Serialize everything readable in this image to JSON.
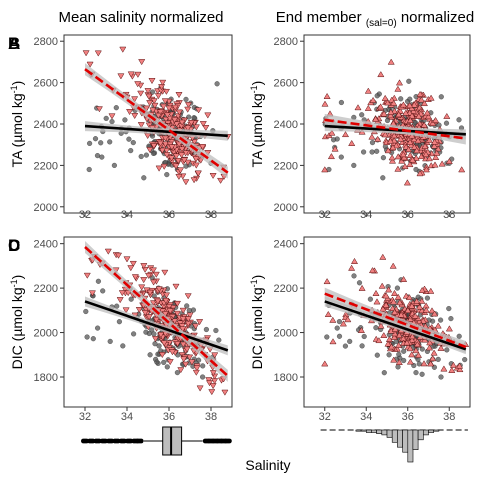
{
  "figure": {
    "column_titles": [
      {
        "main": "Mean salinity normalized",
        "sub": "",
        "tail": ""
      },
      {
        "main": "End member ",
        "sub": "(sal=0)",
        "tail": " normalized"
      }
    ],
    "xlabel": "Salinity",
    "colors": {
      "observed": "#555555",
      "normalized_fill": "#f08080",
      "normalized_dense": "#c00000",
      "fit_observed": "#000000",
      "fit_normalized": "#e00000",
      "ci_band": "#bdbdbd"
    }
  },
  "chart_data": [
    {
      "panel": "A",
      "type": "scatter",
      "ylabel": "TA (µmol kg⁻¹)",
      "xlim": [
        31,
        39
      ],
      "ylim": [
        1970,
        2830
      ],
      "xticks": [
        32,
        34,
        36,
        38
      ],
      "yticks": [
        2000,
        2200,
        2400,
        2600,
        2800
      ],
      "marker": "triangle-down",
      "observed_fit": {
        "x": [
          32,
          38.8
        ],
        "y": [
          2390,
          2343
        ]
      },
      "normalized_fit": {
        "x": [
          32,
          38.8
        ],
        "y": [
          2665,
          2165
        ]
      },
      "observed_sample": [
        [
          32.2,
          2180
        ],
        [
          32.8,
          2240
        ],
        [
          33.4,
          2200
        ],
        [
          33.9,
          2420
        ],
        [
          34.3,
          2310
        ],
        [
          34.8,
          2140
        ],
        [
          35.2,
          2460
        ],
        [
          35.6,
          2280
        ],
        [
          36.1,
          2520
        ],
        [
          36.4,
          2180
        ],
        [
          36.8,
          2390
        ],
        [
          37.1,
          2260
        ],
        [
          37.5,
          2340
        ],
        [
          38.0,
          2210
        ]
      ],
      "normalized_sample": [
        [
          33.8,
          2760
        ],
        [
          34.2,
          2640
        ],
        [
          34.7,
          2700
        ],
        [
          35.0,
          2560
        ],
        [
          35.3,
          2420
        ],
        [
          35.7,
          2600
        ],
        [
          36.0,
          2350
        ],
        [
          36.3,
          2480
        ],
        [
          36.6,
          2250
        ],
        [
          36.9,
          2380
        ],
        [
          37.3,
          2200
        ],
        [
          37.6,
          2290
        ],
        [
          38.1,
          2150
        ],
        [
          38.6,
          2190
        ]
      ]
    },
    {
      "panel": "B",
      "type": "scatter",
      "ylabel": "TA (µmol kg⁻¹)",
      "xlim": [
        31,
        39
      ],
      "ylim": [
        1970,
        2830
      ],
      "xticks": [
        32,
        34,
        36,
        38
      ],
      "yticks": [
        2000,
        2200,
        2400,
        2600,
        2800
      ],
      "marker": "triangle-up",
      "observed_fit": {
        "x": [
          32,
          38.8
        ],
        "y": [
          2390,
          2350
        ]
      },
      "normalized_fit": {
        "x": [
          32,
          38.8
        ],
        "y": [
          2420,
          2330
        ]
      },
      "observed_sample": [
        [
          32.2,
          2180
        ],
        [
          32.8,
          2240
        ],
        [
          33.4,
          2200
        ],
        [
          33.9,
          2420
        ],
        [
          34.3,
          2310
        ],
        [
          34.8,
          2140
        ],
        [
          35.2,
          2460
        ],
        [
          35.6,
          2280
        ],
        [
          36.1,
          2520
        ],
        [
          36.4,
          2180
        ],
        [
          36.8,
          2390
        ],
        [
          37.1,
          2260
        ],
        [
          37.5,
          2340
        ],
        [
          38.0,
          2210
        ]
      ],
      "normalized_sample": [
        [
          32.0,
          2180
        ],
        [
          32.5,
          2280
        ],
        [
          33.0,
          2350
        ],
        [
          33.6,
          2480
        ],
        [
          34.1,
          2560
        ],
        [
          34.7,
          2640
        ],
        [
          35.2,
          2700
        ],
        [
          35.6,
          2600
        ],
        [
          36.1,
          2490
        ],
        [
          36.5,
          2320
        ],
        [
          36.9,
          2180
        ],
        [
          37.4,
          2260
        ],
        [
          38.0,
          2220
        ],
        [
          38.6,
          2180
        ]
      ]
    },
    {
      "panel": "C",
      "type": "scatter",
      "ylabel": "DIC (µmol kg⁻¹)",
      "xlim": [
        31,
        39
      ],
      "ylim": [
        1665,
        2430
      ],
      "xticks": [
        32,
        34,
        36,
        38
      ],
      "yticks": [
        1800,
        2000,
        2200,
        2400
      ],
      "marker": "triangle-down",
      "observed_fit": {
        "x": [
          32,
          38.8
        ],
        "y": [
          2140,
          1920
        ]
      },
      "normalized_fit": {
        "x": [
          32,
          38.8
        ],
        "y": [
          2385,
          1805
        ]
      },
      "observed_sample": [
        [
          32.1,
          1980
        ],
        [
          32.6,
          2020
        ],
        [
          33.2,
          1960
        ],
        [
          33.8,
          1940
        ],
        [
          34.2,
          2150
        ],
        [
          34.7,
          2050
        ],
        [
          35.1,
          1900
        ],
        [
          35.5,
          2200
        ],
        [
          36.0,
          1950
        ],
        [
          36.4,
          1820
        ],
        [
          36.8,
          2000
        ],
        [
          37.2,
          1880
        ],
        [
          37.6,
          1800
        ],
        [
          38.1,
          1860
        ]
      ],
      "normalized_sample": [
        [
          34.0,
          2330
        ],
        [
          34.4,
          2250
        ],
        [
          34.8,
          2300
        ],
        [
          35.1,
          2180
        ],
        [
          35.5,
          2100
        ],
        [
          35.8,
          2270
        ],
        [
          36.1,
          2000
        ],
        [
          36.4,
          2130
        ],
        [
          36.7,
          1880
        ],
        [
          37.0,
          1960
        ],
        [
          37.3,
          1820
        ],
        [
          37.7,
          1900
        ],
        [
          38.1,
          1760
        ],
        [
          38.6,
          1790
        ]
      ]
    },
    {
      "panel": "D",
      "type": "scatter",
      "ylabel": "DIC (µmol kg⁻¹)",
      "xlim": [
        31,
        39
      ],
      "ylim": [
        1665,
        2430
      ],
      "xticks": [
        32,
        34,
        36,
        38
      ],
      "yticks": [
        1800,
        2000,
        2200,
        2400
      ],
      "marker": "triangle-up",
      "observed_fit": {
        "x": [
          32,
          38.8
        ],
        "y": [
          2140,
          1925
        ]
      },
      "normalized_fit": {
        "x": [
          32,
          38.8
        ],
        "y": [
          2175,
          1935
        ]
      },
      "observed_sample": [
        [
          32.1,
          1980
        ],
        [
          32.6,
          2020
        ],
        [
          33.2,
          1960
        ],
        [
          33.8,
          1940
        ],
        [
          34.2,
          2150
        ],
        [
          34.7,
          2050
        ],
        [
          35.1,
          1900
        ],
        [
          35.5,
          2200
        ],
        [
          36.0,
          1950
        ],
        [
          36.4,
          1820
        ],
        [
          36.8,
          2000
        ],
        [
          37.2,
          1880
        ],
        [
          37.6,
          1800
        ],
        [
          38.1,
          1860
        ]
      ],
      "normalized_sample": [
        [
          32.0,
          1860
        ],
        [
          32.4,
          1960
        ],
        [
          32.9,
          2040
        ],
        [
          33.4,
          2120
        ],
        [
          33.8,
          2200
        ],
        [
          34.3,
          2280
        ],
        [
          34.8,
          2340
        ],
        [
          35.3,
          2300
        ],
        [
          35.8,
          2240
        ],
        [
          36.2,
          2120
        ],
        [
          36.6,
          1980
        ],
        [
          37.1,
          1860
        ],
        [
          37.6,
          1930
        ],
        [
          38.5,
          1850
        ]
      ]
    }
  ],
  "marginal": {
    "boxplot": {
      "type": "box",
      "xlim": [
        31,
        39
      ],
      "q1": 35.7,
      "median": 36.1,
      "q3": 36.6,
      "whisker_low": 34.8,
      "whisker_high": 37.6,
      "outliers": [
        32.0,
        32.3,
        32.6,
        32.9,
        33.2,
        33.5,
        33.8,
        34.1,
        34.4,
        34.6,
        37.8,
        38.0,
        38.2,
        38.4,
        38.6,
        38.8
      ]
    },
    "histogram": {
      "type": "bar",
      "xlim": [
        31,
        39
      ],
      "bin_width": 0.25,
      "bin_centers": [
        33.625,
        33.875,
        34.125,
        34.375,
        34.625,
        34.875,
        35.125,
        35.375,
        35.625,
        35.875,
        36.125,
        36.375,
        36.625,
        36.875,
        37.125,
        37.375
      ],
      "counts": [
        1,
        1,
        2,
        2,
        3,
        4,
        6,
        10,
        14,
        18,
        26,
        16,
        8,
        4,
        2,
        1
      ]
    }
  }
}
